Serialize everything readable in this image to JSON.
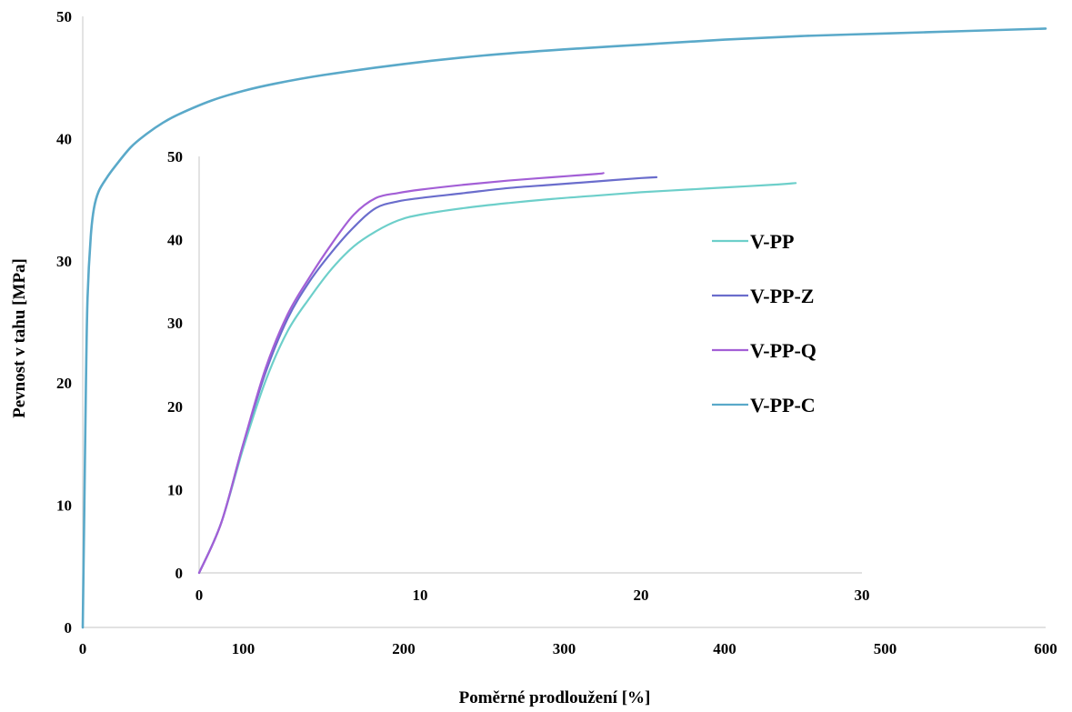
{
  "chart_data": [
    {
      "id": "main",
      "type": "line",
      "title": "",
      "xlabel": "Poměrné prodloužení [%]",
      "ylabel": "Pevnost v tahu [MPa]",
      "xlim": [
        0,
        600
      ],
      "ylim": [
        0,
        50
      ],
      "xticks": [
        0,
        100,
        200,
        300,
        400,
        500,
        600
      ],
      "yticks": [
        0,
        10,
        20,
        30,
        40,
        50
      ],
      "grid": false,
      "series": [
        {
          "name": "V-PP-C",
          "color": "#5aa9c9",
          "x": [
            0,
            1,
            2,
            3,
            5,
            7,
            10,
            15,
            20,
            30,
            40,
            50,
            60,
            80,
            100,
            120,
            150,
            200,
            250,
            300,
            350,
            400,
            450,
            500,
            550,
            600
          ],
          "y": [
            0,
            10,
            20,
            27,
            32,
            34.3,
            35.7,
            36.8,
            37.7,
            39.3,
            40.4,
            41.3,
            42,
            43.1,
            43.9,
            44.5,
            45.2,
            46.1,
            46.8,
            47.3,
            47.7,
            48.1,
            48.4,
            48.6,
            48.8,
            49
          ]
        }
      ]
    },
    {
      "id": "inset",
      "type": "line",
      "title": "",
      "xlabel": "",
      "ylabel": "",
      "xlim": [
        0,
        30
      ],
      "ylim": [
        0,
        50
      ],
      "xticks": [
        0,
        10,
        20,
        30
      ],
      "yticks": [
        0,
        10,
        20,
        30,
        40,
        50
      ],
      "grid": false,
      "legend": "right",
      "series": [
        {
          "name": "V-PP",
          "color": "#6dcfca",
          "x": [
            0,
            1,
            2,
            3,
            4,
            5,
            6,
            7,
            8,
            9,
            10,
            12,
            14,
            16,
            18,
            20,
            22,
            24,
            26,
            27
          ],
          "y": [
            0,
            6,
            15,
            23,
            29,
            33,
            36.5,
            39.2,
            41,
            42.3,
            43,
            43.8,
            44.4,
            44.9,
            45.3,
            45.7,
            46,
            46.3,
            46.6,
            46.8
          ]
        },
        {
          "name": "V-PP-Z",
          "color": "#6a6dcc",
          "x": [
            0,
            1,
            2,
            3,
            4,
            5,
            6,
            7,
            8,
            9,
            10,
            12,
            14,
            16,
            18,
            20,
            20.7
          ],
          "y": [
            0,
            6,
            15.5,
            24,
            30.5,
            35,
            38.5,
            41.5,
            43.8,
            44.6,
            45,
            45.6,
            46.2,
            46.6,
            47,
            47.4,
            47.5
          ]
        },
        {
          "name": "V-PP-Q",
          "color": "#a35fd6",
          "x": [
            0,
            1,
            2,
            3,
            4,
            5,
            6,
            7,
            8,
            9,
            10,
            12,
            14,
            16,
            18,
            18.3
          ],
          "y": [
            0,
            6,
            15.5,
            24.5,
            31,
            35.5,
            39.5,
            43,
            45,
            45.6,
            46,
            46.6,
            47.1,
            47.5,
            47.9,
            48
          ]
        },
        {
          "name": "V-PP-C",
          "color": "#5aa9c9",
          "x": [],
          "y": []
        }
      ]
    }
  ]
}
